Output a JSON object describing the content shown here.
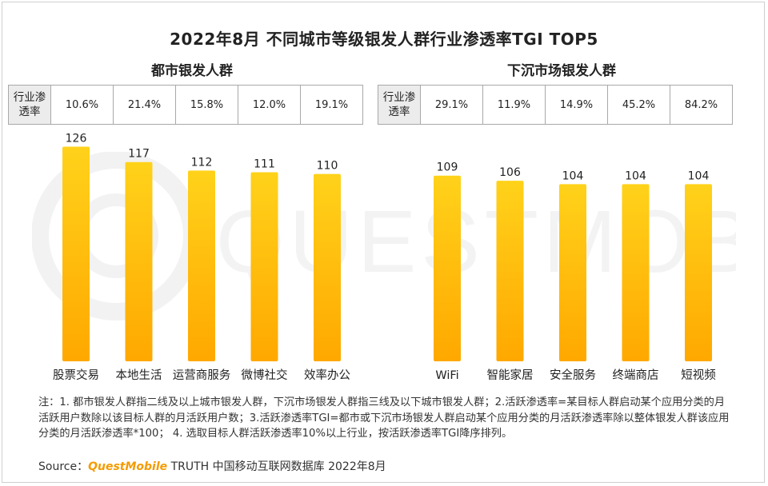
{
  "title": "2022年8月 不同城市等级银发人群行业渗透率TGI TOP5",
  "rate_header": "行业渗透率",
  "colors": {
    "bar_top": "#ffd21a",
    "bar_bottom": "#ffa800",
    "brand": "#f49b00"
  },
  "chart_data": [
    {
      "type": "bar",
      "title": "都市银发人群",
      "categories": [
        "股票交易",
        "本地生活",
        "运营商服务",
        "微博社交",
        "效率办公"
      ],
      "values": [
        126,
        117,
        112,
        111,
        110
      ],
      "penetration": [
        "10.6%",
        "21.4%",
        "15.8%",
        "12.0%",
        "19.1%"
      ],
      "ylim": [
        0,
        130
      ]
    },
    {
      "type": "bar",
      "title": "下沉市场银发人群",
      "categories": [
        "WiFi",
        "智能家居",
        "安全服务",
        "终端商店",
        "短视频"
      ],
      "values": [
        109,
        106,
        104,
        104,
        104
      ],
      "penetration": [
        "29.1%",
        "11.9%",
        "14.9%",
        "45.2%",
        "84.2%"
      ],
      "ylim": [
        0,
        130
      ]
    }
  ],
  "notes": "注：1. 都市银发人群指二线及以上城市银发人群，下沉市场银发人群指三线及以下城市银发人群；2.活跃渗透率=某目标人群启动某个应用分类的月活跃用户数除以该目标人群的月活跃用户数；3.活跃渗透率TGI=都市或下沉市场银发人群启动某个应用分类的月活跃渗透率除以整体银发人群该应用分类的月活跃渗透率*100； 4. 选取目标人群活跃渗透率10%以上行业，按活跃渗透率TGI降序排列。",
  "source": {
    "prefix": "Source：",
    "brand": "QuestMobile",
    "suffix": " TRUTH 中国移动互联网数据库 2022年8月"
  },
  "watermark": "QUESTMOBILE"
}
